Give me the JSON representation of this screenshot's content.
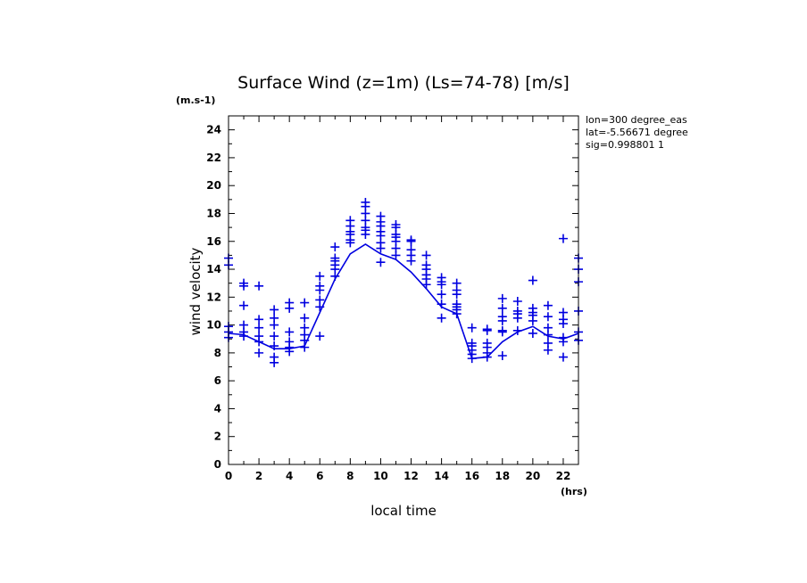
{
  "chart_data": {
    "type": "scatter",
    "title": "Surface Wind (z=1m) (Ls=74-78) [m/s]",
    "xlabel": "local time",
    "ylabel": "wind velocity",
    "x_unit": "(hrs)",
    "y_unit": "(m.s-1)",
    "xlim": [
      0,
      23
    ],
    "ylim": [
      0,
      25
    ],
    "x_ticks": [
      0,
      2,
      4,
      6,
      8,
      10,
      12,
      14,
      16,
      18,
      20,
      22
    ],
    "y_ticks": [
      0,
      2,
      4,
      6,
      8,
      10,
      12,
      14,
      16,
      18,
      20,
      22,
      24
    ],
    "annotations": [
      "lon=300 degree_eas",
      "lat=-5.56671 degree",
      "sig=0.998801 1"
    ],
    "color": "#0000e0",
    "series": [
      {
        "name": "mean",
        "kind": "line",
        "x": [
          0,
          1,
          2,
          3,
          4,
          5,
          6,
          7,
          8,
          9,
          10,
          11,
          12,
          13,
          14,
          15,
          16,
          17,
          18,
          19,
          20,
          21,
          22,
          23
        ],
        "y": [
          9.4,
          9.3,
          8.8,
          8.3,
          8.3,
          8.5,
          10.9,
          13.3,
          15.1,
          15.8,
          15.1,
          14.7,
          13.8,
          12.6,
          11.3,
          10.8,
          7.6,
          7.7,
          8.8,
          9.5,
          9.9,
          9.2,
          9.0,
          9.4
        ]
      },
      {
        "name": "samples",
        "kind": "scatter",
        "points": [
          [
            0,
            14.8
          ],
          [
            0,
            14.3
          ],
          [
            0,
            9.9
          ],
          [
            0,
            9.5
          ],
          [
            0,
            9.1
          ],
          [
            1,
            13.0
          ],
          [
            1,
            12.8
          ],
          [
            1,
            11.4
          ],
          [
            1,
            10.0
          ],
          [
            1,
            9.5
          ],
          [
            1,
            9.2
          ],
          [
            2,
            12.8
          ],
          [
            2,
            10.4
          ],
          [
            2,
            9.8
          ],
          [
            2,
            9.2
          ],
          [
            2,
            8.8
          ],
          [
            2,
            8.0
          ],
          [
            3,
            11.1
          ],
          [
            3,
            10.5
          ],
          [
            3,
            10.0
          ],
          [
            3,
            9.2
          ],
          [
            3,
            8.5
          ],
          [
            3,
            7.7
          ],
          [
            3,
            7.3
          ],
          [
            4,
            11.6
          ],
          [
            4,
            11.2
          ],
          [
            4,
            9.5
          ],
          [
            4,
            8.8
          ],
          [
            4,
            8.4
          ],
          [
            4,
            8.1
          ],
          [
            5,
            11.6
          ],
          [
            5,
            10.5
          ],
          [
            5,
            9.8
          ],
          [
            5,
            9.3
          ],
          [
            5,
            8.9
          ],
          [
            5,
            8.4
          ],
          [
            6,
            13.5
          ],
          [
            6,
            12.8
          ],
          [
            6,
            12.5
          ],
          [
            6,
            11.8
          ],
          [
            6,
            11.3
          ],
          [
            6,
            9.2
          ],
          [
            7,
            15.6
          ],
          [
            7,
            14.8
          ],
          [
            7,
            14.6
          ],
          [
            7,
            14.3
          ],
          [
            7,
            14.0
          ],
          [
            7,
            13.5
          ],
          [
            8,
            17.5
          ],
          [
            8,
            17.1
          ],
          [
            8,
            16.7
          ],
          [
            8,
            16.5
          ],
          [
            8,
            16.1
          ],
          [
            8,
            15.9
          ],
          [
            9,
            18.8
          ],
          [
            9,
            18.5
          ],
          [
            9,
            18.0
          ],
          [
            9,
            17.5
          ],
          [
            9,
            17.0
          ],
          [
            9,
            16.8
          ],
          [
            9,
            16.5
          ],
          [
            10,
            17.8
          ],
          [
            10,
            17.4
          ],
          [
            10,
            17.1
          ],
          [
            10,
            16.7
          ],
          [
            10,
            16.4
          ],
          [
            10,
            15.9
          ],
          [
            10,
            15.5
          ],
          [
            10,
            14.5
          ],
          [
            11,
            17.2
          ],
          [
            11,
            17.0
          ],
          [
            11,
            16.5
          ],
          [
            11,
            16.3
          ],
          [
            11,
            16.0
          ],
          [
            11,
            15.5
          ],
          [
            11,
            15.0
          ],
          [
            12,
            16.1
          ],
          [
            12,
            16.0
          ],
          [
            12,
            15.4
          ],
          [
            12,
            15.0
          ],
          [
            12,
            14.6
          ],
          [
            13,
            15.0
          ],
          [
            13,
            14.3
          ],
          [
            13,
            14.0
          ],
          [
            13,
            13.6
          ],
          [
            13,
            13.3
          ],
          [
            13,
            12.9
          ],
          [
            14,
            13.4
          ],
          [
            14,
            13.1
          ],
          [
            14,
            12.9
          ],
          [
            14,
            12.2
          ],
          [
            14,
            11.5
          ],
          [
            14,
            10.5
          ],
          [
            15,
            13.0
          ],
          [
            15,
            12.5
          ],
          [
            15,
            12.2
          ],
          [
            15,
            11.5
          ],
          [
            15,
            11.3
          ],
          [
            15,
            11.1
          ],
          [
            15,
            10.8
          ],
          [
            16,
            9.8
          ],
          [
            16,
            8.7
          ],
          [
            16,
            8.5
          ],
          [
            16,
            8.2
          ],
          [
            16,
            7.9
          ],
          [
            16,
            7.6
          ],
          [
            17,
            9.7
          ],
          [
            17,
            9.6
          ],
          [
            17,
            8.7
          ],
          [
            17,
            8.4
          ],
          [
            17,
            8.0
          ],
          [
            17,
            7.7
          ],
          [
            18,
            11.9
          ],
          [
            18,
            11.2
          ],
          [
            18,
            10.6
          ],
          [
            18,
            10.3
          ],
          [
            18,
            9.6
          ],
          [
            18,
            9.5
          ],
          [
            18,
            7.8
          ],
          [
            19,
            11.7
          ],
          [
            19,
            11.0
          ],
          [
            19,
            10.8
          ],
          [
            19,
            10.5
          ],
          [
            19,
            9.6
          ],
          [
            20,
            13.2
          ],
          [
            20,
            11.2
          ],
          [
            20,
            10.9
          ],
          [
            20,
            10.7
          ],
          [
            20,
            10.3
          ],
          [
            20,
            9.4
          ],
          [
            21,
            11.4
          ],
          [
            21,
            10.6
          ],
          [
            21,
            9.8
          ],
          [
            21,
            9.3
          ],
          [
            21,
            8.7
          ],
          [
            21,
            8.2
          ],
          [
            22,
            16.2
          ],
          [
            22,
            10.9
          ],
          [
            22,
            10.4
          ],
          [
            22,
            10.1
          ],
          [
            22,
            9.1
          ],
          [
            22,
            8.8
          ],
          [
            22,
            7.7
          ],
          [
            23,
            14.8
          ],
          [
            23,
            14.0
          ],
          [
            23,
            13.1
          ],
          [
            23,
            11.0
          ],
          [
            23,
            9.5
          ],
          [
            23,
            8.9
          ]
        ]
      }
    ]
  }
}
